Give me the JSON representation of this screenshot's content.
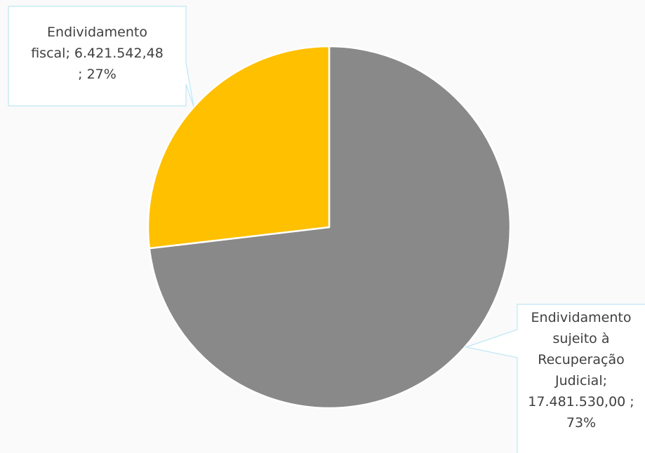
{
  "chart_data": {
    "type": "pie",
    "title": "",
    "slices": [
      {
        "name": "Endividamento sujeito à Recuperação Judicial",
        "value": 17481530.0,
        "value_label": "17.481.530,00",
        "percent_label": "73%",
        "color": "#898989",
        "data_label": "Endividamento\nsujeito à\nRecuperação\nJudicial;\n17.481.530,00 ;\n73%"
      },
      {
        "name": "Endividamento fiscal",
        "value": 6421542.48,
        "value_label": "6.421.542,48",
        "percent_label": "27%",
        "color": "#FFC000",
        "data_label": "Endividamento\nfiscal;  6.421.542,48\n; 27%"
      }
    ],
    "legend": "none",
    "callout_border_color": "#BDE7F5"
  }
}
